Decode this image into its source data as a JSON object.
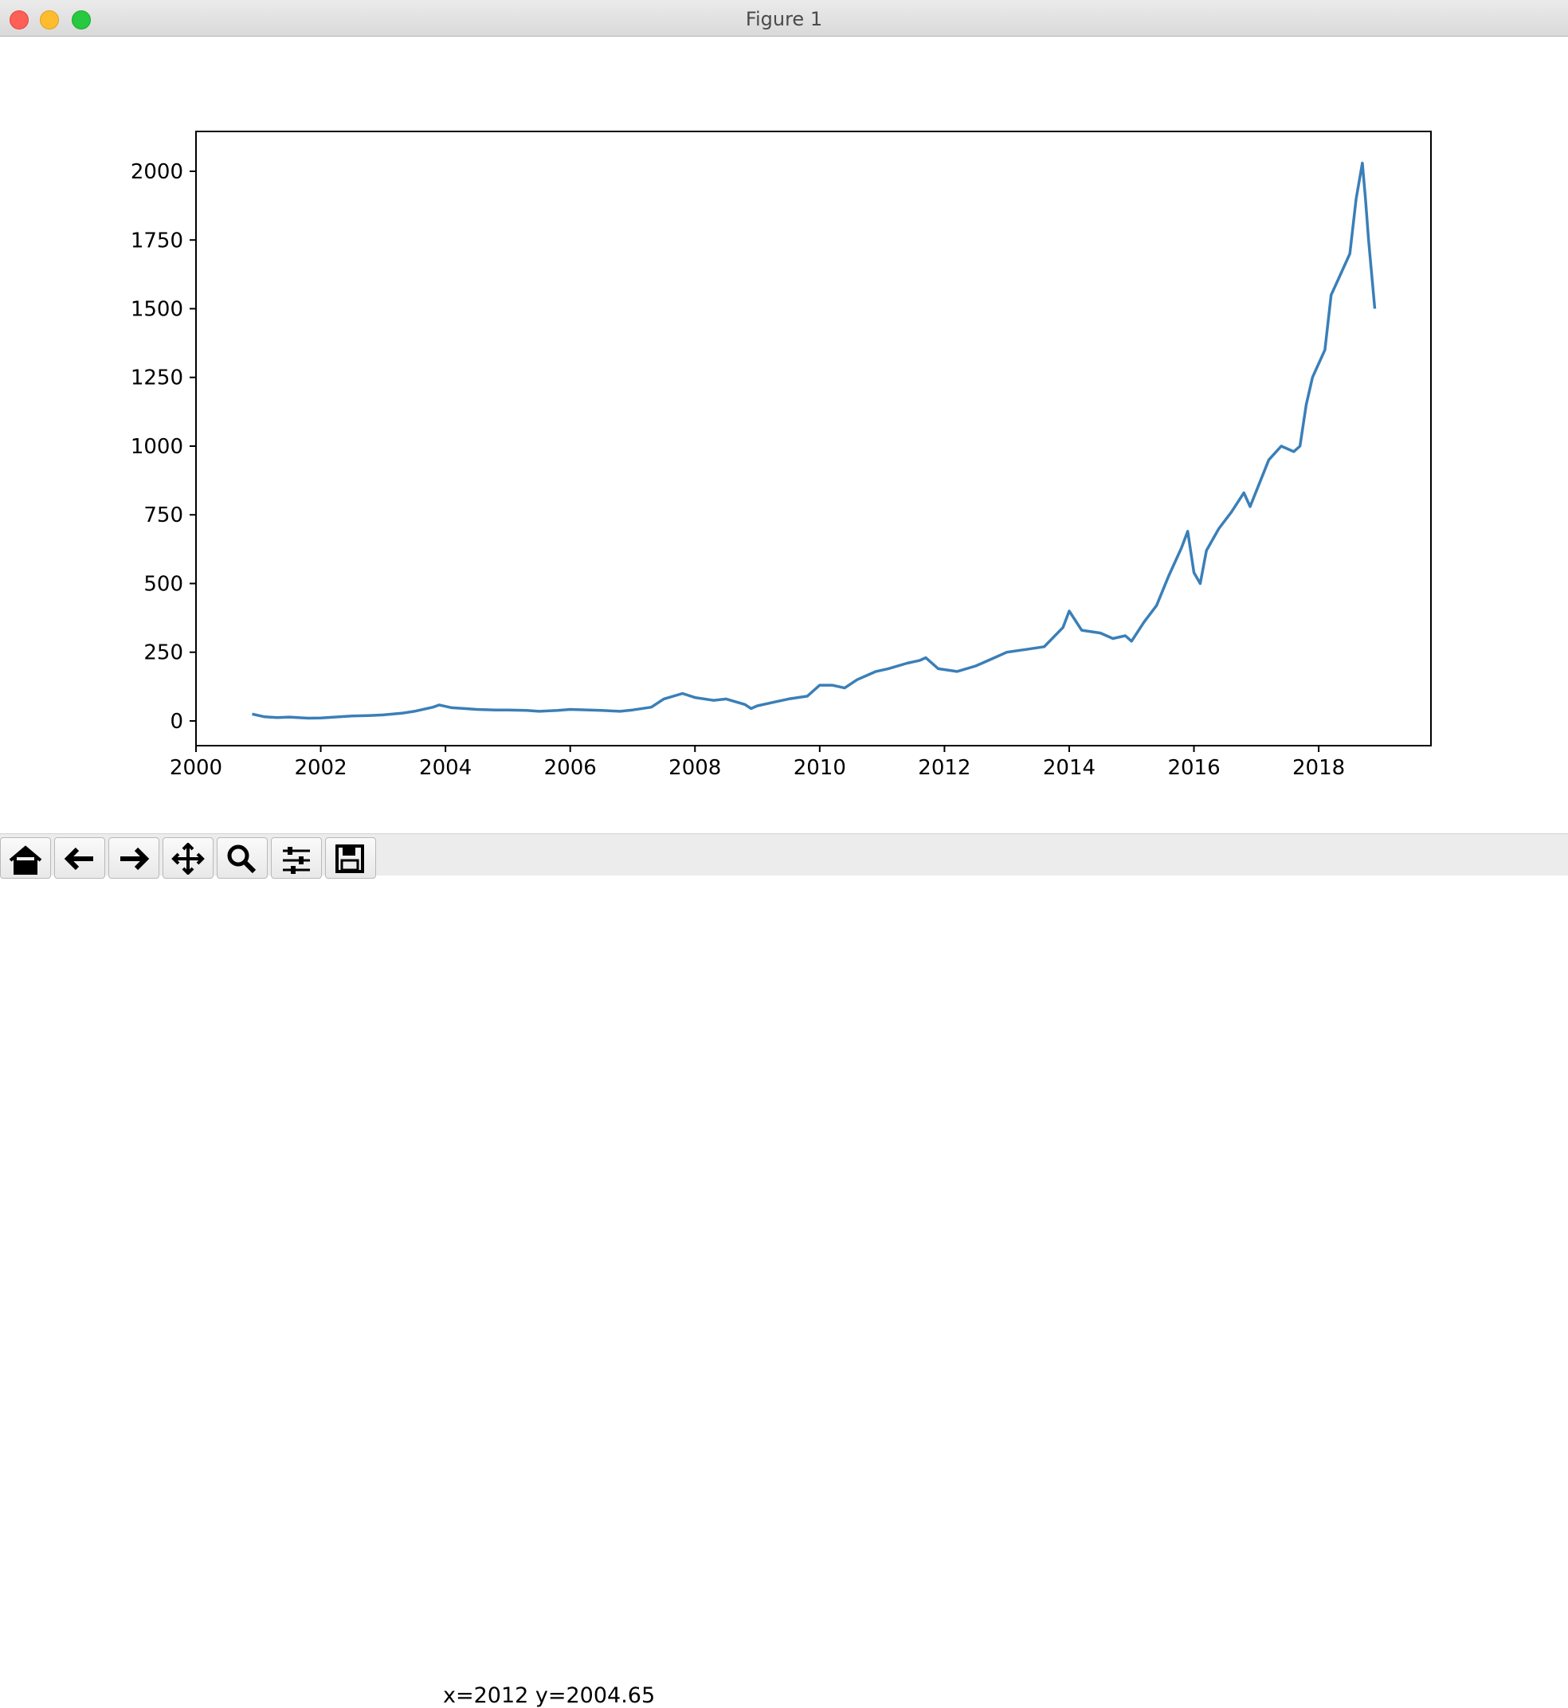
{
  "window": {
    "title": "Figure 1"
  },
  "toolbar": {
    "buttons": [
      {
        "icon": "home-icon"
      },
      {
        "icon": "back-arrow-icon"
      },
      {
        "icon": "forward-arrow-icon"
      },
      {
        "icon": "pan-icon"
      },
      {
        "icon": "zoom-icon"
      },
      {
        "icon": "configure-subplots-icon"
      },
      {
        "icon": "save-icon"
      }
    ],
    "coords": "x=2012 y=2004.65"
  },
  "chart_data": {
    "type": "line",
    "title": "",
    "xlabel": "",
    "ylabel": "",
    "xlim": [
      2000,
      2019.8
    ],
    "ylim": [
      -90,
      2145
    ],
    "xticks": [
      "2000",
      "2002",
      "2004",
      "2006",
      "2008",
      "2010",
      "2012",
      "2014",
      "2016",
      "2018"
    ],
    "yticks": [
      "0",
      "250",
      "500",
      "750",
      "1000",
      "1250",
      "1500",
      "1750",
      "2000"
    ],
    "line_color": "#3a7fb8",
    "series": [
      {
        "name": "",
        "x": [
          2000.9,
          2001.1,
          2001.3,
          2001.5,
          2001.8,
          2002.0,
          2002.3,
          2002.5,
          2002.8,
          2003.0,
          2003.3,
          2003.5,
          2003.8,
          2003.9,
          2004.1,
          2004.3,
          2004.5,
          2004.8,
          2005.0,
          2005.3,
          2005.5,
          2005.8,
          2006.0,
          2006.3,
          2006.5,
          2006.8,
          2007.0,
          2007.3,
          2007.5,
          2007.8,
          2008.0,
          2008.3,
          2008.5,
          2008.8,
          2008.9,
          2009.0,
          2009.3,
          2009.5,
          2009.8,
          2010.0,
          2010.2,
          2010.4,
          2010.6,
          2010.9,
          2011.1,
          2011.4,
          2011.6,
          2011.7,
          2011.9,
          2012.2,
          2012.5,
          2012.7,
          2013.0,
          2013.3,
          2013.6,
          2013.9,
          2014.0,
          2014.2,
          2014.5,
          2014.7,
          2014.9,
          2015.0,
          2015.2,
          2015.4,
          2015.6,
          2015.8,
          2015.9,
          2016.0,
          2016.1,
          2016.2,
          2016.4,
          2016.6,
          2016.8,
          2016.9,
          2017.2,
          2017.4,
          2017.6,
          2017.7,
          2017.8,
          2017.9,
          2018.1,
          2018.2,
          2018.3,
          2018.5,
          2018.6,
          2018.7,
          2018.75,
          2018.8,
          2018.9
        ],
        "y": [
          25,
          15,
          12,
          14,
          10,
          11,
          15,
          18,
          20,
          22,
          28,
          35,
          50,
          58,
          48,
          45,
          42,
          40,
          40,
          38,
          35,
          38,
          42,
          40,
          38,
          35,
          40,
          50,
          80,
          100,
          85,
          75,
          80,
          60,
          45,
          55,
          70,
          80,
          90,
          130,
          130,
          120,
          150,
          180,
          190,
          210,
          220,
          230,
          190,
          180,
          200,
          220,
          250,
          260,
          270,
          340,
          400,
          330,
          320,
          300,
          310,
          290,
          360,
          420,
          530,
          630,
          690,
          540,
          500,
          620,
          700,
          760,
          830,
          780,
          950,
          1000,
          980,
          1000,
          1150,
          1250,
          1350,
          1550,
          1600,
          1700,
          1900,
          2030,
          1900,
          1750,
          1500
        ]
      }
    ]
  }
}
